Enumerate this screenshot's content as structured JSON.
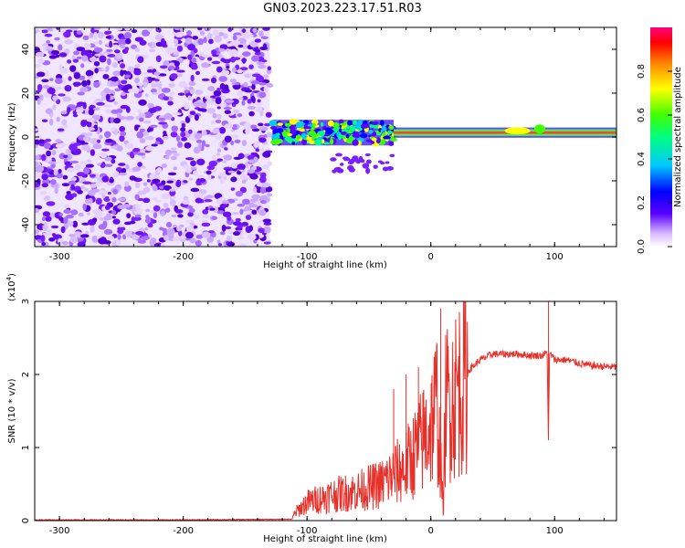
{
  "title": "GN03.2023.223.17.51.R03",
  "colors": {
    "trace": "#e8302a",
    "noise_purple": "#7a1fff",
    "axis": "#000000"
  },
  "chart_data": [
    {
      "type": "heatmap",
      "xlabel": "Height of straight line (km)",
      "ylabel": "Frequency (Hz)",
      "xlim": [
        -320,
        150
      ],
      "ylim": [
        -50,
        50
      ],
      "xticks": [
        -300,
        -200,
        -100,
        0,
        100
      ],
      "yticks": [
        -40,
        -20,
        0,
        20,
        40
      ],
      "noise_region_x": [
        -320,
        -130
      ],
      "signal_band": [
        {
          "x_start": -128,
          "x_end": -30,
          "freq_center": 2,
          "half_width": 5,
          "level": 0.6
        },
        {
          "x_start": -30,
          "x_end": 150,
          "freq_center": 2,
          "half_width": 1.5,
          "level": 0.85
        }
      ],
      "colorbar": {
        "label": "Normalized spectral amplitude",
        "range": [
          0,
          1
        ],
        "ticks": [
          "0.0",
          "0.2",
          "0.4",
          "0.6",
          "0.8"
        ]
      }
    },
    {
      "type": "line",
      "xlabel": "Height of straight line (km)",
      "ylabel": "SNR (10 * v/v)",
      "ylabel_multiplier": "(x10",
      "ylabel_multiplier_exp": "4",
      "ylabel_multiplier_close": ")",
      "xlim": [
        -320,
        150
      ],
      "ylim": [
        0,
        3
      ],
      "xticks": [
        -300,
        -200,
        -100,
        0,
        100
      ],
      "yticks": [
        0,
        1,
        2,
        3
      ],
      "series": [
        {
          "x": [
            -320,
            -200,
            -112,
            -110,
            -100,
            -80,
            -60,
            -40,
            -20,
            -10,
            0,
            5,
            10,
            12,
            20,
            30,
            40,
            50,
            60,
            70,
            80,
            90,
            94,
            95,
            96,
            100,
            110,
            120,
            130,
            140,
            150
          ],
          "y": [
            0.01,
            0.01,
            0.02,
            0.1,
            0.25,
            0.35,
            0.4,
            0.5,
            0.75,
            1.0,
            1.3,
            1.6,
            0.15,
            1.6,
            1.75,
            2.05,
            2.2,
            2.28,
            2.28,
            2.28,
            2.26,
            2.26,
            2.3,
            1.1,
            2.3,
            2.2,
            2.2,
            2.15,
            2.12,
            2.11,
            2.1
          ],
          "spikes": [
            {
              "x": -30,
              "y": 1.8
            },
            {
              "x": -20,
              "y": 2.0
            },
            {
              "x": -10,
              "y": 2.1
            },
            {
              "x": 8,
              "y": 2.9
            },
            {
              "x": 95,
              "y": 3.05
            }
          ]
        }
      ]
    }
  ]
}
